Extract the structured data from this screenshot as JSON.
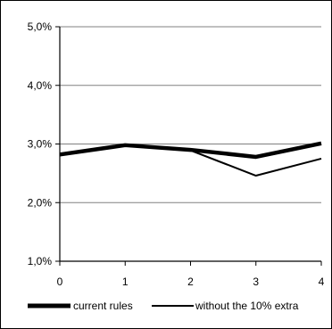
{
  "chart_data": {
    "type": "line",
    "x": [
      0,
      1,
      2,
      3,
      4
    ],
    "x_tick_labels": [
      "0",
      "1",
      "2",
      "3",
      "4"
    ],
    "y_tick_labels": [
      "1,0%",
      "2,0%",
      "3,0%",
      "4,0%",
      "5,0%"
    ],
    "ylim": [
      1.0,
      5.0
    ],
    "y_ticks": [
      1.0,
      2.0,
      3.0,
      4.0,
      5.0
    ],
    "grid": true,
    "legend_position": "bottom",
    "series": [
      {
        "name": "current rules",
        "values": [
          2.82,
          2.98,
          2.9,
          2.78,
          3.01
        ],
        "color": "#000000",
        "style": "thick"
      },
      {
        "name": "without the 10% extra",
        "values": [
          2.83,
          2.99,
          2.89,
          2.46,
          2.75
        ],
        "color": "#000000",
        "style": "thin"
      }
    ]
  }
}
